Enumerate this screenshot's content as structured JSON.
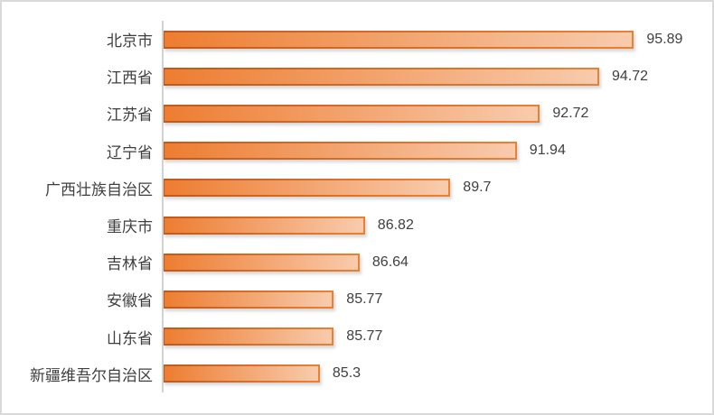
{
  "chart_data": {
    "type": "bar",
    "orientation": "horizontal",
    "title": "",
    "xlabel": "",
    "ylabel": "",
    "categories": [
      "北京市",
      "江西省",
      "江苏省",
      "辽宁省",
      "广西壮族自治区",
      "重庆市",
      "吉林省",
      "安徽省",
      "山东省",
      "新疆维吾尔自治区"
    ],
    "values": [
      95.89,
      94.72,
      92.72,
      91.94,
      89.7,
      86.82,
      86.64,
      85.77,
      85.77,
      85.3
    ],
    "value_labels": [
      "95.89",
      "94.72",
      "92.72",
      "91.94",
      "89.7",
      "86.82",
      "86.64",
      "85.77",
      "85.77",
      "85.3"
    ],
    "xlim": [
      80,
      96
    ],
    "grid": false,
    "legend": false,
    "colors": {
      "bar_fill_start": "#ED7D31",
      "bar_fill_end": "#F8CBAD",
      "bar_border_start": "#C0591A",
      "bar_border_end": "#EA8132",
      "label_text": "#3F3F3F",
      "axis_line": "#D2D2D2",
      "frame_border": "#D9D9D9"
    }
  }
}
